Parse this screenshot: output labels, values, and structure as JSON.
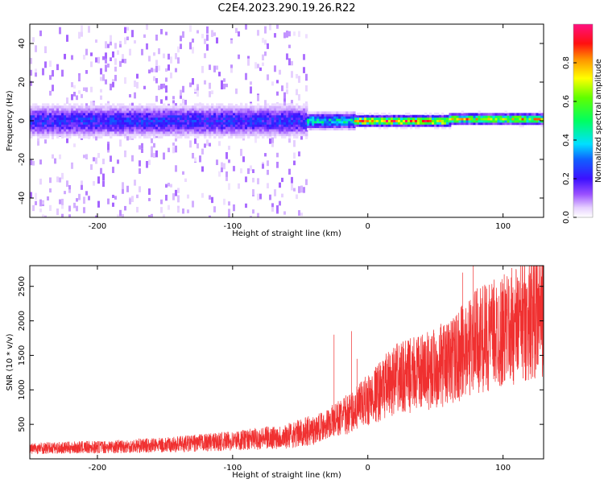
{
  "title": "C2E4.2023.290.19.26.R22",
  "chart_data": [
    {
      "type": "heatmap",
      "xlabel": "Height of straight line (km)",
      "ylabel": "Frequency (Hz)",
      "xlim": [
        -250,
        130
      ],
      "ylim": [
        -50,
        50
      ],
      "x_ticks": [
        -200,
        -100,
        0,
        100
      ],
      "y_ticks": [
        -40,
        -20,
        0,
        20,
        40
      ],
      "x_tick_labels": [
        "-200",
        "-100",
        "0",
        "100"
      ],
      "y_tick_labels": [
        "-40",
        "-20",
        "0",
        "20",
        "40"
      ],
      "colorbar": {
        "label": "Normalized spectral amplitude",
        "range": [
          0,
          1
        ],
        "ticks": [
          0.0,
          0.2,
          0.4,
          0.6,
          0.8
        ],
        "tick_labels": [
          "0.0",
          "0.2",
          "0.4",
          "0.6",
          "0.8"
        ]
      },
      "bands": [
        {
          "x": [
            -250,
            -45
          ],
          "center_hz": 0,
          "halfwidth_hz": 6,
          "amplitude": 0.25,
          "scatter_halfwidth_hz": 50,
          "scatter_amplitude": 0.07
        },
        {
          "x": [
            -45,
            -10
          ],
          "center_hz": 0,
          "halfwidth_hz": 3,
          "amplitude": 0.45
        },
        {
          "x": [
            -10,
            60
          ],
          "center_hz": 0,
          "halfwidth_hz": 2,
          "amplitude": 0.85
        },
        {
          "x": [
            60,
            130
          ],
          "center_hz": 1,
          "halfwidth_hz": 2,
          "amplitude": 0.75
        }
      ]
    },
    {
      "type": "line",
      "xlabel": "Height of straight line (km)",
      "ylabel": "SNR (10 * v/v)",
      "xlim": [
        -250,
        130
      ],
      "ylim": [
        0,
        2800
      ],
      "x_ticks": [
        -200,
        -100,
        0,
        100
      ],
      "y_ticks": [
        500,
        1000,
        1500,
        2000,
        2500
      ],
      "x_tick_labels": [
        "-200",
        "-100",
        "0",
        "100"
      ],
      "y_tick_labels": [
        "500",
        "1000",
        "1500",
        "2000",
        "2500"
      ],
      "series": [
        {
          "color": "#f03030",
          "x": [
            -250,
            -200,
            -150,
            -100,
            -60,
            -40,
            -20,
            -10,
            0,
            20,
            40,
            60,
            80,
            100,
            130
          ],
          "y": [
            150,
            170,
            200,
            260,
            330,
            420,
            600,
            700,
            850,
            1150,
            1250,
            1400,
            1700,
            1850,
            2150
          ],
          "spikes": [
            [
              -25,
              1800
            ],
            [
              -12,
              1850
            ],
            [
              -8,
              1450
            ],
            [
              78,
              2800
            ],
            [
              70,
              2700
            ],
            [
              120,
              2650
            ]
          ]
        }
      ]
    }
  ]
}
